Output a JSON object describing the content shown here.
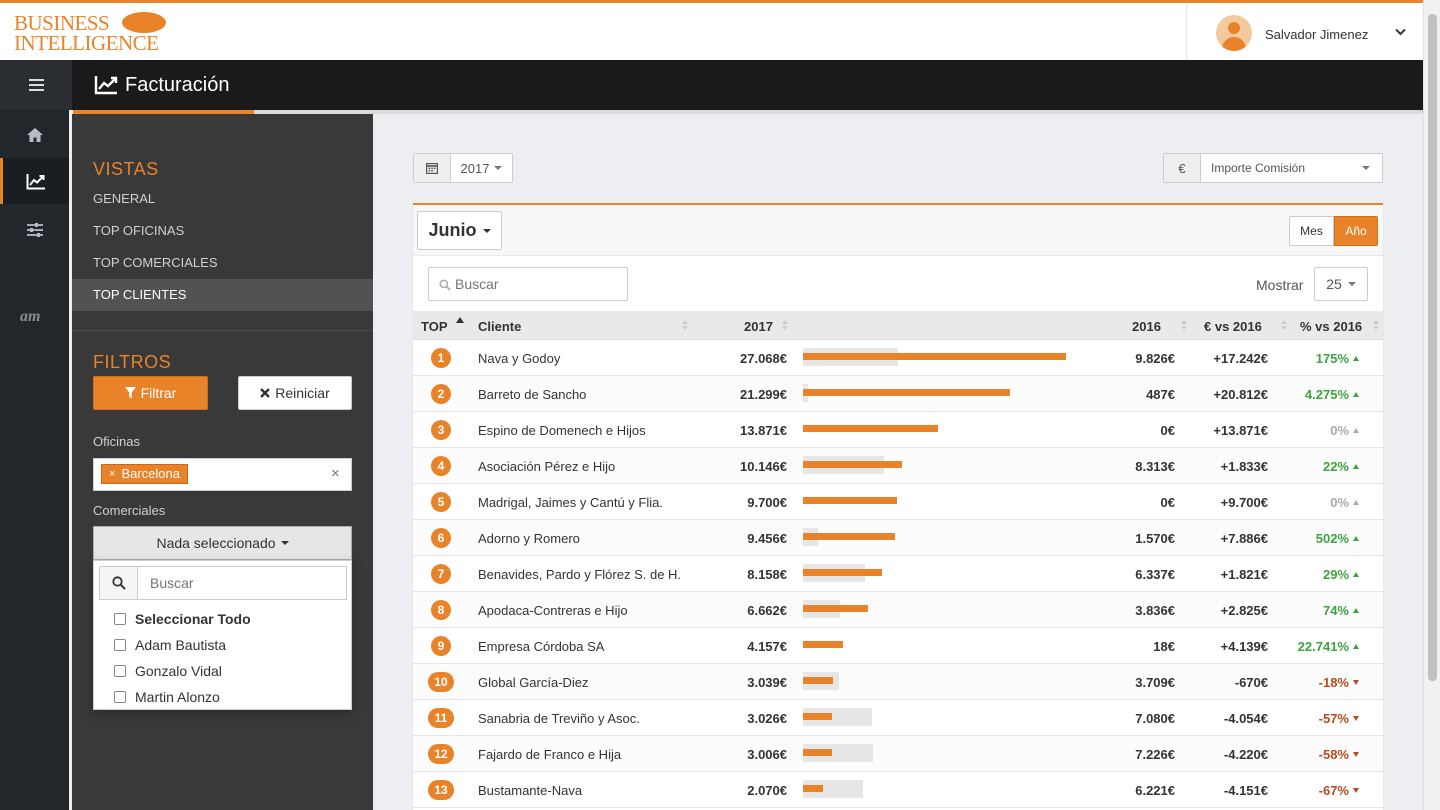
{
  "brand": {
    "line1": "BUSINESS",
    "line2": "INTELLIGENCE"
  },
  "user": {
    "name": "Salvador Jimenez"
  },
  "header": {
    "title": "Facturación"
  },
  "sidebar": {
    "vistas_heading": "VISTAS",
    "vistas": [
      {
        "label": "GENERAL",
        "active": false
      },
      {
        "label": "TOP OFICINAS",
        "active": false
      },
      {
        "label": "TOP COMERCIALES",
        "active": false
      },
      {
        "label": "TOP CLIENTES",
        "active": true
      }
    ],
    "filtros_heading": "FILTROS",
    "filtrar_label": "Filtrar",
    "reiniciar_label": "Reiniciar",
    "oficinas_label": "Oficinas",
    "oficinas_tag": "Barcelona",
    "comerciales_label": "Comerciales",
    "comerciales_value": "Nada seleccionado"
  },
  "comerciales_dropdown": {
    "search_placeholder": "Buscar",
    "select_all": "Seleccionar Todo",
    "options": [
      "Adam Bautista",
      "Gonzalo Vidal",
      "Martin Alonzo"
    ]
  },
  "toolbar": {
    "year": "2017",
    "currency": "€",
    "metric": "Importe Comisión"
  },
  "card": {
    "month": "Junio",
    "toggle_mes": "Mes",
    "toggle_ano": "Año",
    "search_placeholder": "Buscar",
    "mostrar_label": "Mostrar",
    "mostrar_value": "25"
  },
  "table": {
    "headers": {
      "top": "TOP",
      "cliente": "Cliente",
      "y2017": "2017",
      "y2016": "2016",
      "diff": "€ vs 2016",
      "pct": "% vs 2016"
    },
    "rows": [
      {
        "rank": "1",
        "cliente": "Nava y Godoy",
        "v2017": "27.068€",
        "v2016": "9.826€",
        "diff": "+17.242€",
        "pct": "175%",
        "trend": "up",
        "n2017": 27068,
        "n2016": 9826
      },
      {
        "rank": "2",
        "cliente": "Barreto de Sancho",
        "v2017": "21.299€",
        "v2016": "487€",
        "diff": "+20.812€",
        "pct": "4.275%",
        "trend": "up",
        "n2017": 21299,
        "n2016": 487
      },
      {
        "rank": "3",
        "cliente": "Espino de Domenech e Hijos",
        "v2017": "13.871€",
        "v2016": "0€",
        "diff": "+13.871€",
        "pct": "0%",
        "trend": "zero",
        "n2017": 13871,
        "n2016": 0
      },
      {
        "rank": "4",
        "cliente": "Asociación Pérez e Hijo",
        "v2017": "10.146€",
        "v2016": "8.313€",
        "diff": "+1.833€",
        "pct": "22%",
        "trend": "up",
        "n2017": 10146,
        "n2016": 8313
      },
      {
        "rank": "5",
        "cliente": "Madrigal, Jaimes y Cantú y Flia.",
        "v2017": "9.700€",
        "v2016": "0€",
        "diff": "+9.700€",
        "pct": "0%",
        "trend": "zero",
        "n2017": 9700,
        "n2016": 0
      },
      {
        "rank": "6",
        "cliente": "Adorno y Romero",
        "v2017": "9.456€",
        "v2016": "1.570€",
        "diff": "+7.886€",
        "pct": "502%",
        "trend": "up",
        "n2017": 9456,
        "n2016": 1570
      },
      {
        "rank": "7",
        "cliente": "Benavides, Pardo y Flórez S. de H.",
        "v2017": "8.158€",
        "v2016": "6.337€",
        "diff": "+1.821€",
        "pct": "29%",
        "trend": "up",
        "n2017": 8158,
        "n2016": 6337
      },
      {
        "rank": "8",
        "cliente": "Apodaca-Contreras e Hijo",
        "v2017": "6.662€",
        "v2016": "3.836€",
        "diff": "+2.825€",
        "pct": "74%",
        "trend": "up",
        "n2017": 6662,
        "n2016": 3836
      },
      {
        "rank": "9",
        "cliente": "Empresa Córdoba SA",
        "v2017": "4.157€",
        "v2016": "18€",
        "diff": "+4.139€",
        "pct": "22.741%",
        "trend": "up",
        "n2017": 4157,
        "n2016": 18
      },
      {
        "rank": "10",
        "cliente": "Global García-Diez",
        "v2017": "3.039€",
        "v2016": "3.709€",
        "diff": "-670€",
        "pct": "-18%",
        "trend": "down",
        "n2017": 3039,
        "n2016": 3709
      },
      {
        "rank": "11",
        "cliente": "Sanabria de Treviño y Asoc.",
        "v2017": "3.026€",
        "v2016": "7.080€",
        "diff": "-4.054€",
        "pct": "-57%",
        "trend": "down",
        "n2017": 3026,
        "n2016": 7080
      },
      {
        "rank": "12",
        "cliente": "Fajardo de Franco e Hija",
        "v2017": "3.006€",
        "v2016": "7.226€",
        "diff": "-4.220€",
        "pct": "-58%",
        "trend": "down",
        "n2017": 3006,
        "n2016": 7226
      },
      {
        "rank": "13",
        "cliente": "Bustamante-Nava",
        "v2017": "2.070€",
        "v2016": "6.221€",
        "diff": "-4.151€",
        "pct": "-67%",
        "trend": "down",
        "n2017": 2070,
        "n2016": 6221
      }
    ]
  },
  "colors": {
    "accent": "#e8832a",
    "up": "#3ea341",
    "down": "#b94a1f",
    "neutral": "#aaaaaa"
  }
}
